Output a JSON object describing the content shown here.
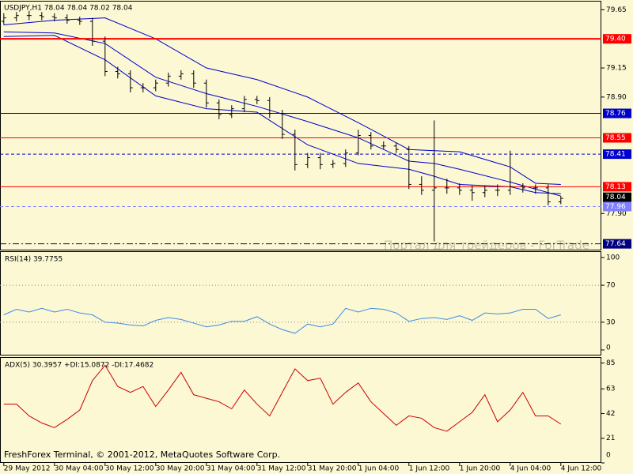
{
  "chart_data": [
    {
      "type": "ohlc",
      "title": "USDJPY,H1  78.04 78.04 78.02 78.04",
      "watermark": "Портал для трейдеров - ForTrade",
      "xlim": [
        -0.6,
        94.4
      ],
      "ylim": [
        77.59,
        79.72
      ],
      "color": "#000000",
      "yticks": [
        79.65,
        79.15,
        {
          "value": 78.9,
          "label": "78.90"
        },
        {
          "value": 77.9,
          "label": "77.90"
        }
      ],
      "x": [
        0,
        2,
        4,
        6,
        8,
        10,
        12,
        14,
        16,
        18,
        20,
        22,
        24,
        26,
        28,
        30,
        32,
        34,
        36,
        38,
        40,
        42,
        44,
        46,
        48,
        50,
        52,
        54,
        56,
        58,
        60,
        62,
        64,
        66,
        68,
        70,
        72,
        74,
        76,
        78,
        80,
        82,
        84,
        86,
        88
      ],
      "open": [
        79.55,
        79.58,
        79.6,
        79.6,
        79.59,
        79.58,
        79.56,
        79.55,
        79.38,
        79.12,
        79.1,
        78.98,
        78.98,
        79.02,
        79.08,
        79.1,
        79.02,
        78.85,
        78.75,
        78.8,
        78.88,
        78.87,
        78.76,
        78.58,
        78.32,
        78.38,
        78.32,
        78.33,
        78.42,
        78.57,
        78.48,
        78.48,
        78.45,
        78.15,
        78.1,
        78.12,
        78.12,
        78.1,
        78.08,
        78.1,
        78.1,
        78.13,
        78.12,
        78.12,
        78.0
      ],
      "high": [
        79.62,
        79.63,
        79.64,
        79.63,
        79.62,
        79.61,
        79.59,
        79.58,
        79.42,
        79.16,
        79.13,
        79.02,
        79.05,
        79.11,
        79.13,
        79.13,
        79.05,
        78.88,
        78.83,
        78.91,
        78.91,
        78.9,
        78.79,
        78.62,
        78.42,
        78.42,
        78.36,
        78.45,
        78.62,
        78.6,
        78.52,
        78.51,
        78.48,
        78.22,
        78.7,
        78.2,
        78.16,
        78.14,
        78.14,
        78.15,
        78.44,
        78.16,
        78.15,
        78.15,
        78.05
      ],
      "low": [
        79.52,
        79.55,
        79.56,
        79.56,
        79.55,
        79.53,
        79.52,
        79.34,
        79.08,
        79.06,
        78.94,
        78.94,
        78.95,
        78.99,
        79.05,
        78.98,
        78.81,
        78.71,
        78.72,
        78.77,
        78.84,
        78.72,
        78.54,
        78.27,
        78.29,
        78.28,
        78.29,
        78.3,
        78.4,
        78.45,
        78.45,
        78.42,
        78.11,
        78.06,
        77.66,
        78.07,
        78.06,
        78.01,
        78.04,
        78.05,
        78.06,
        78.08,
        78.07,
        77.97,
        77.98
      ],
      "close": [
        79.58,
        79.6,
        79.6,
        79.59,
        79.58,
        79.56,
        79.55,
        79.38,
        79.12,
        79.1,
        78.98,
        78.98,
        79.02,
        79.08,
        79.1,
        79.02,
        78.85,
        78.75,
        78.8,
        78.88,
        78.87,
        78.76,
        78.58,
        78.32,
        78.38,
        78.32,
        78.33,
        78.42,
        78.57,
        78.48,
        78.48,
        78.45,
        78.15,
        78.1,
        78.12,
        78.12,
        78.1,
        78.08,
        78.1,
        78.1,
        78.13,
        78.12,
        78.12,
        78.0,
        78.03
      ],
      "bands": [
        {
          "color": "#0000cc",
          "x": [
            0,
            8,
            16,
            24,
            32,
            40,
            48,
            56,
            64,
            68,
            72,
            80,
            84,
            88
          ],
          "values": [
            79.52,
            79.56,
            79.58,
            79.4,
            79.15,
            79.05,
            78.9,
            78.68,
            78.45,
            78.44,
            78.43,
            78.3,
            78.16,
            78.15
          ]
        },
        {
          "color": "#0000cc",
          "x": [
            0,
            8,
            16,
            24,
            32,
            40,
            48,
            56,
            64,
            68,
            72,
            80,
            84,
            88
          ],
          "values": [
            79.46,
            79.45,
            79.36,
            79.07,
            78.93,
            78.82,
            78.69,
            78.55,
            78.35,
            78.33,
            78.28,
            78.17,
            78.11,
            78.05
          ]
        },
        {
          "color": "#0000cc",
          "x": [
            0,
            8,
            16,
            24,
            32,
            40,
            48,
            56,
            64,
            68,
            72,
            80,
            84,
            88
          ],
          "values": [
            79.42,
            79.43,
            79.22,
            78.91,
            78.8,
            78.77,
            78.49,
            78.33,
            78.28,
            78.22,
            78.15,
            78.13,
            78.08,
            78.07
          ]
        }
      ],
      "levels": [
        {
          "value": 79.4,
          "label": "79.40",
          "color": "#ff0000",
          "style": "thick"
        },
        {
          "value": 78.76,
          "label": "78.76",
          "color": "#0000cc",
          "style": "solid"
        },
        {
          "value": 78.55,
          "label": "78.55",
          "color": "#ff0000",
          "style": "solid"
        },
        {
          "value": 78.41,
          "label": "78.41",
          "color": "#0000cc",
          "style": "dash"
        },
        {
          "value": 78.13,
          "label": "78.13",
          "color": "#ff0000",
          "style": "solid"
        },
        {
          "value": 78.04,
          "label": "78.04",
          "color": "#000000",
          "style": "tag"
        },
        {
          "value": 77.96,
          "label": "77.96",
          "color": "#8080ff",
          "style": "dash"
        },
        {
          "value": 77.64,
          "label": "77.64",
          "color": "#000080",
          "style": "dashdot"
        }
      ]
    },
    {
      "type": "line",
      "title": "RSI(14) 39.7755",
      "xlim": [
        -0.6,
        94.4
      ],
      "ylim": [
        -6,
        106.8
      ],
      "yticks": [
        100,
        70,
        30,
        0
      ],
      "levels": [
        70,
        30
      ],
      "series": [
        {
          "color": "#3c8ce6",
          "x": [
            0,
            2,
            4,
            6,
            8,
            10,
            12,
            14,
            16,
            18,
            20,
            22,
            24,
            26,
            28,
            30,
            32,
            34,
            36,
            38,
            40,
            42,
            44,
            46,
            48,
            50,
            52,
            54,
            56,
            58,
            60,
            62,
            64,
            66,
            68,
            70,
            72,
            74,
            76,
            78,
            80,
            82,
            84,
            86,
            88
          ],
          "values": [
            38,
            44,
            41,
            45,
            41,
            44,
            40,
            38,
            30,
            29,
            27,
            26,
            32,
            35,
            33,
            29,
            25,
            27,
            31,
            31,
            36,
            28,
            22,
            18,
            28,
            25,
            28,
            45,
            41,
            45,
            44,
            40,
            31,
            34,
            35,
            33,
            37,
            32,
            40,
            39,
            40,
            44,
            44,
            34,
            38
          ]
        }
      ]
    },
    {
      "type": "line",
      "title": "ADX(5) 30.3957 +DI:15.0872 -DI:17.4682",
      "xlim": [
        -0.6,
        94.4
      ],
      "ylim": [
        0,
        90
      ],
      "yticks": [
        85,
        63,
        42,
        21,
        0
      ],
      "xticks": [
        {
          "value": 0,
          "label": "29 May 2012"
        },
        {
          "value": 8,
          "label": "30 May 04:00"
        },
        {
          "value": 16,
          "label": "30 May 12:00"
        },
        {
          "value": 24,
          "label": "30 May 20:00"
        },
        {
          "value": 32,
          "label": "31 May 04:00"
        },
        {
          "value": 40,
          "label": "31 May 12:00"
        },
        {
          "value": 48,
          "label": "31 May 20:00"
        },
        {
          "value": 56,
          "label": "1 Jun 04:00"
        },
        {
          "value": 64,
          "label": "1 Jun 12:00"
        },
        {
          "value": 72,
          "label": "1 Jun 20:00"
        },
        {
          "value": 80,
          "label": "4 Jun 04:00"
        },
        {
          "value": 88,
          "label": "4 Jun 12:00"
        }
      ],
      "footer": "FreshForex Terminal, © 2001-2012, MetaQuotes Software Corp.",
      "series": [
        {
          "color": "#cc0000",
          "x": [
            0,
            2,
            4,
            6,
            8,
            10,
            12,
            14,
            16,
            18,
            20,
            22,
            24,
            26,
            28,
            30,
            32,
            34,
            36,
            38,
            40,
            42,
            44,
            46,
            48,
            50,
            52,
            54,
            56,
            58,
            60,
            62,
            64,
            66,
            68,
            70,
            72,
            74,
            76,
            78,
            80,
            82,
            84,
            86,
            88
          ],
          "values": [
            50,
            50,
            40,
            34,
            30,
            37,
            45,
            70,
            83,
            65,
            60,
            65,
            48,
            62,
            77,
            58,
            55,
            52,
            46,
            62,
            50,
            40,
            60,
            80,
            70,
            72,
            50,
            60,
            68,
            52,
            42,
            32,
            40,
            38,
            30,
            27,
            35,
            43,
            58,
            35,
            45,
            60,
            40,
            40,
            33
          ]
        }
      ]
    }
  ]
}
